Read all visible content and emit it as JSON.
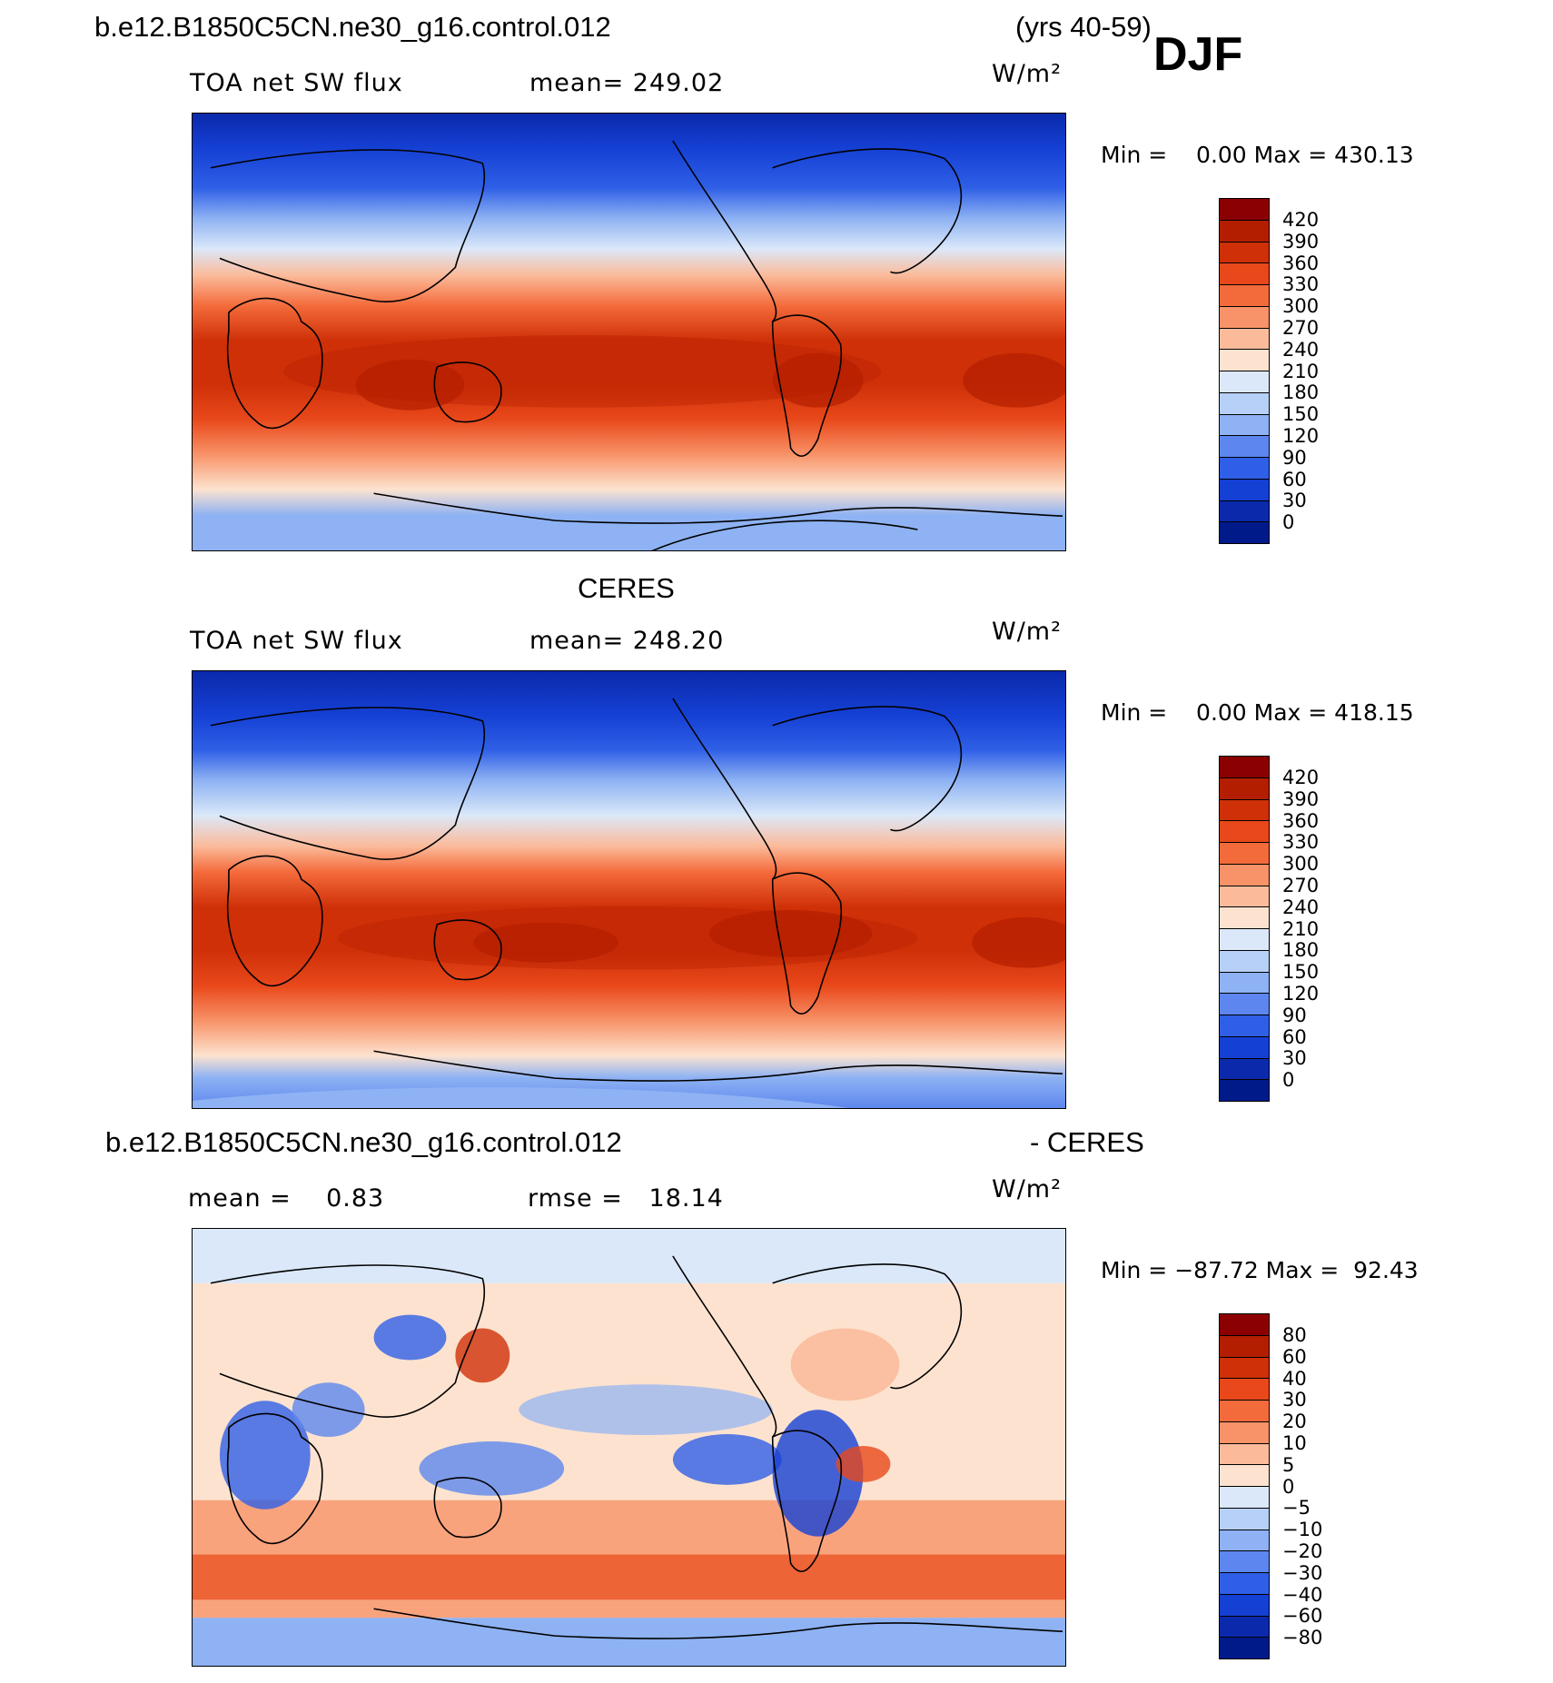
{
  "header": {
    "case_name": "b.e12.B1850C5CN.ne30_g16.control.012",
    "years": "(yrs 40-59)",
    "season": "DJF"
  },
  "panels": [
    {
      "left_label": "TOA net SW flux",
      "center_label": "mean= 249.02",
      "units": "W/m²",
      "stats": "Min =    0.00 Max = 430.13",
      "colorbar": {
        "labels": [
          "420",
          "390",
          "360",
          "330",
          "300",
          "270",
          "240",
          "210",
          "180",
          "150",
          "120",
          "90",
          "60",
          "30",
          "0"
        ],
        "colors": [
          "#8b0000",
          "#b31e00",
          "#cf3008",
          "#e8481a",
          "#f46b3b",
          "#f89268",
          "#fbbb9b",
          "#fde3cf",
          "#dbe8f9",
          "#b7d0f7",
          "#8eb2f3",
          "#5d87ee",
          "#2f5fe6",
          "#1540d4",
          "#0a29ab",
          "#001a8a"
        ]
      }
    },
    {
      "top_title": "CERES",
      "left_label": "TOA net SW flux",
      "center_label": "mean= 248.20",
      "units": "W/m²",
      "stats": "Min =    0.00 Max = 418.15",
      "colorbar": {
        "labels": [
          "420",
          "390",
          "360",
          "330",
          "300",
          "270",
          "240",
          "210",
          "180",
          "150",
          "120",
          "90",
          "60",
          "30",
          "0"
        ],
        "colors": [
          "#8b0000",
          "#b31e00",
          "#cf3008",
          "#e8481a",
          "#f46b3b",
          "#f89268",
          "#fbbb9b",
          "#fde3cf",
          "#dbe8f9",
          "#b7d0f7",
          "#8eb2f3",
          "#5d87ee",
          "#2f5fe6",
          "#1540d4",
          "#0a29ab",
          "#001a8a"
        ]
      }
    },
    {
      "top_title": "b.e12.B1850C5CN.ne30_g16.control.012",
      "top_title_right": "- CERES",
      "left_label": "mean =    0.83",
      "center_label": "rmse =   18.14",
      "units": "W/m²",
      "stats": "Min = −87.72 Max =  92.43",
      "colorbar": {
        "labels": [
          "80",
          "60",
          "40",
          "30",
          "20",
          "10",
          "5",
          "0",
          "−5",
          "−10",
          "−20",
          "−30",
          "−40",
          "−60",
          "−80"
        ],
        "colors": [
          "#8b0000",
          "#b31e00",
          "#cf3008",
          "#e8481a",
          "#f46b3b",
          "#f89268",
          "#fbbb9b",
          "#fde3cf",
          "#dbe8f9",
          "#b7d0f7",
          "#8eb2f3",
          "#5d87ee",
          "#2f5fe6",
          "#1540d4",
          "#0a29ab",
          "#001a8a"
        ]
      }
    }
  ]
}
